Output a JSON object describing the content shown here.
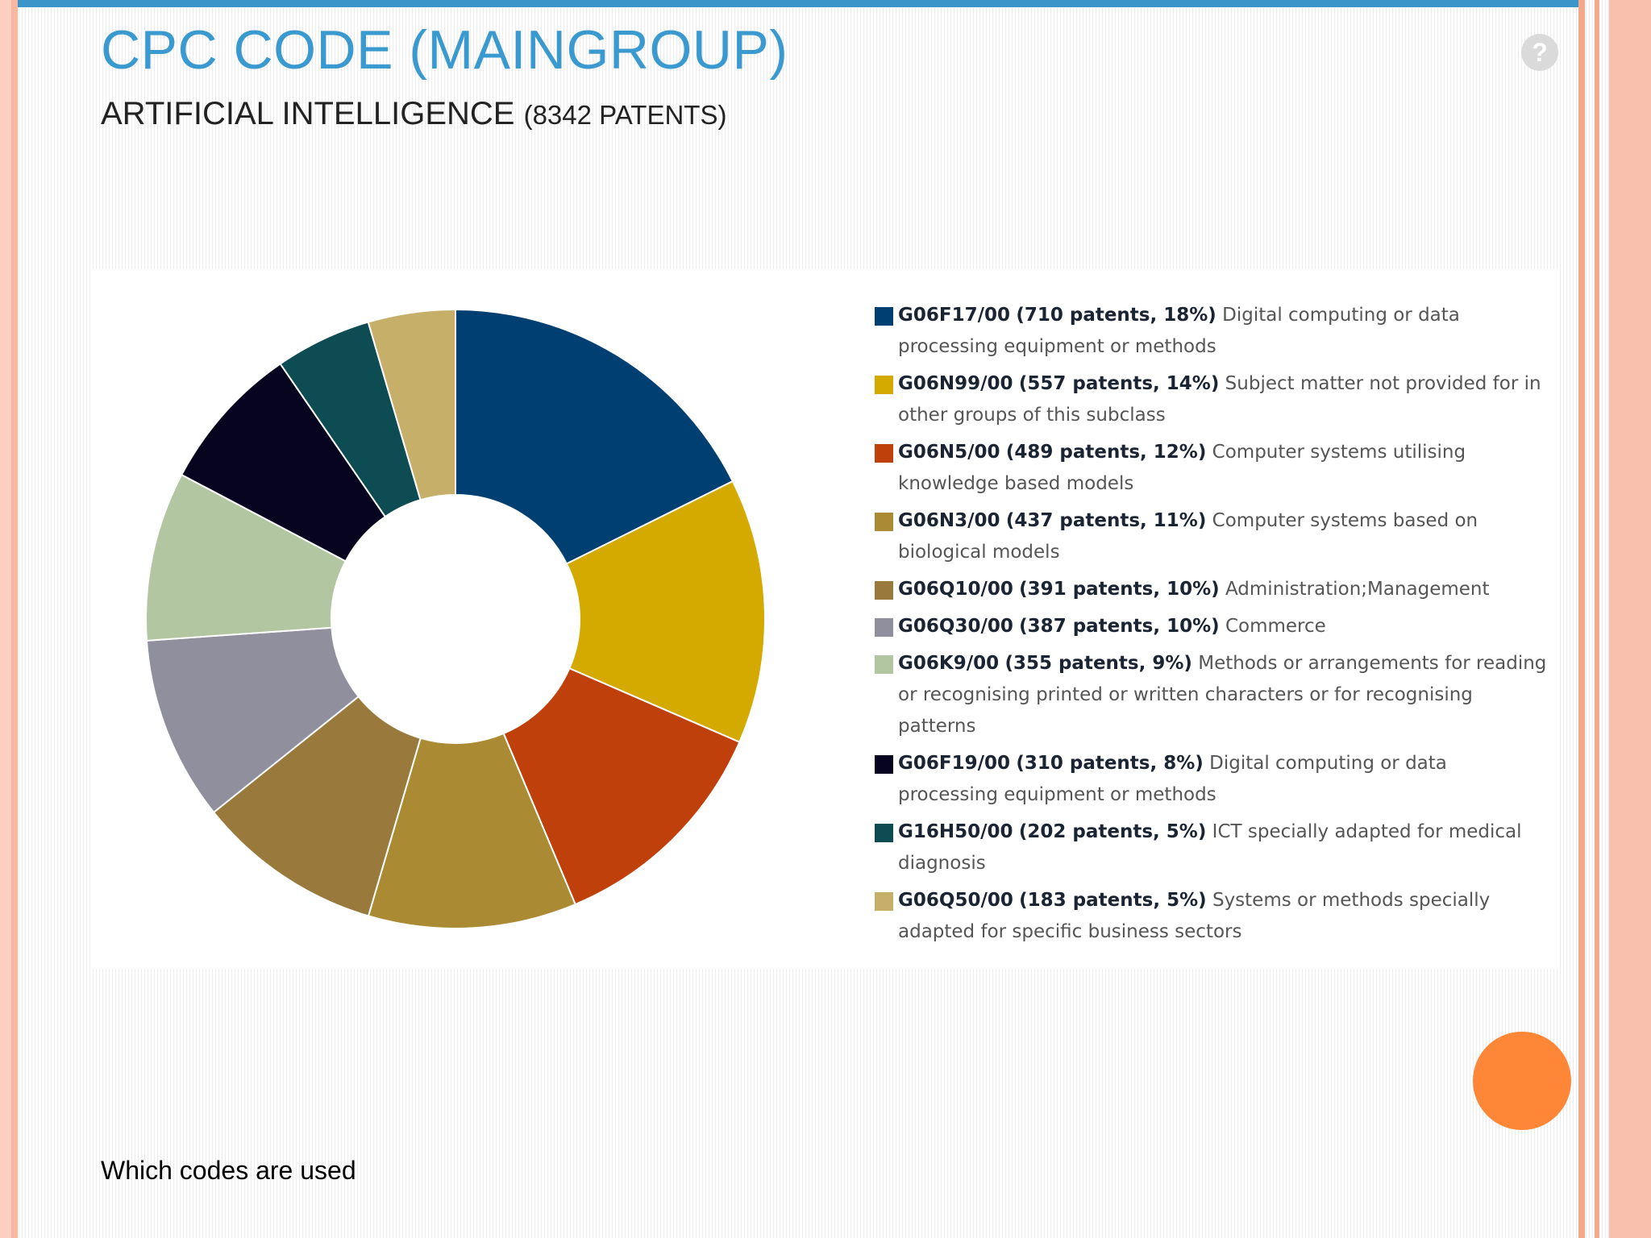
{
  "slide": {
    "title": "CPC CODE (MAINGROUP)",
    "subtitle_main": "ARTIFICIAL INTELLIGENCE",
    "subtitle_count": "(8342 PATENTS)",
    "help_glyph": "?",
    "footer_note": "Which codes are used"
  },
  "chart_data": {
    "type": "pie",
    "variant": "donut",
    "title": "CPC CODE (MAINGROUP)",
    "subtitle": "ARTIFICIAL INTELLIGENCE (8342 PATENTS)",
    "legend_position": "right",
    "series": [
      {
        "code": "G06F17/00",
        "stats": "(710 patents, 18%)",
        "value": 710,
        "percent": 18,
        "description": "Digital computing or data processing equipment or methods",
        "color": "#003f72"
      },
      {
        "code": "G06N99/00",
        "stats": "(557 patents, 14%)",
        "value": 557,
        "percent": 14,
        "description": "Subject matter not provided for in other groups of this subclass",
        "color": "#d4aa00"
      },
      {
        "code": "G06N5/00",
        "stats": "(489 patents, 12%)",
        "value": 489,
        "percent": 12,
        "description": "Computer systems utilising knowledge based models",
        "color": "#c0400c"
      },
      {
        "code": "G06N3/00",
        "stats": "(437 patents, 11%)",
        "value": 437,
        "percent": 11,
        "description": "Computer systems based on biological models",
        "color": "#aa8a33"
      },
      {
        "code": "G06Q10/00",
        "stats": "(391 patents, 10%)",
        "value": 391,
        "percent": 10,
        "description": "Administration;Management",
        "color": "#9a7a3c"
      },
      {
        "code": "G06Q30/00",
        "stats": "(387 patents, 10%)",
        "value": 387,
        "percent": 10,
        "description": "Commerce",
        "color": "#8f8f9e"
      },
      {
        "code": "G06K9/00",
        "stats": "(355 patents, 9%)",
        "value": 355,
        "percent": 9,
        "description": "Methods or arrangements for reading or recognising printed or written characters or for recognising patterns",
        "color": "#b2c7a1"
      },
      {
        "code": "G06F19/00",
        "stats": "(310 patents, 8%)",
        "value": 310,
        "percent": 8,
        "description": "Digital computing or data processing equipment or methods",
        "color": "#07041f"
      },
      {
        "code": "G16H50/00",
        "stats": "(202 patents, 5%)",
        "value": 202,
        "percent": 5,
        "description": "ICT specially adapted for medical diagnosis",
        "color": "#0c4c52"
      },
      {
        "code": "G06Q50/00",
        "stats": "(183 patents, 5%)",
        "value": 183,
        "percent": 5,
        "description": "Systems or methods specially adapted for specific business sectors",
        "color": "#c6b069"
      }
    ]
  }
}
